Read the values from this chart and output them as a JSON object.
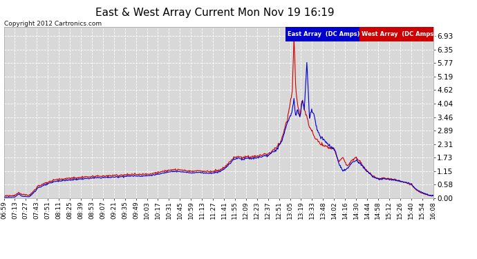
{
  "title": "East & West Array Current Mon Nov 19 16:19",
  "copyright": "Copyright 2012 Cartronics.com",
  "east_label": "East Array  (DC Amps)",
  "west_label": "West Array  (DC Amps)",
  "east_color": "#0000cc",
  "west_color": "#cc0000",
  "background_color": "#ffffff",
  "plot_bg_color": "#d8d8d8",
  "grid_color": "#ffffff",
  "ylim": [
    0.0,
    7.3
  ],
  "yticks": [
    0.0,
    0.58,
    1.15,
    1.73,
    2.31,
    2.89,
    3.46,
    4.04,
    4.62,
    5.19,
    5.77,
    6.35,
    6.93
  ],
  "x_labels": [
    "06:59",
    "07:13",
    "07:27",
    "07:43",
    "07:51",
    "08:11",
    "08:25",
    "08:39",
    "08:53",
    "09:07",
    "09:21",
    "09:35",
    "09:49",
    "10:03",
    "10:17",
    "10:31",
    "10:45",
    "10:59",
    "11:13",
    "11:27",
    "11:41",
    "11:55",
    "12:09",
    "12:23",
    "12:37",
    "12:51",
    "13:05",
    "13:19",
    "13:33",
    "13:48",
    "14:02",
    "14:16",
    "14:30",
    "14:44",
    "14:58",
    "15:12",
    "15:26",
    "15:40",
    "15:54",
    "16:08"
  ],
  "title_fontsize": 11,
  "tick_fontsize": 6.5,
  "ytick_fontsize": 7.5
}
